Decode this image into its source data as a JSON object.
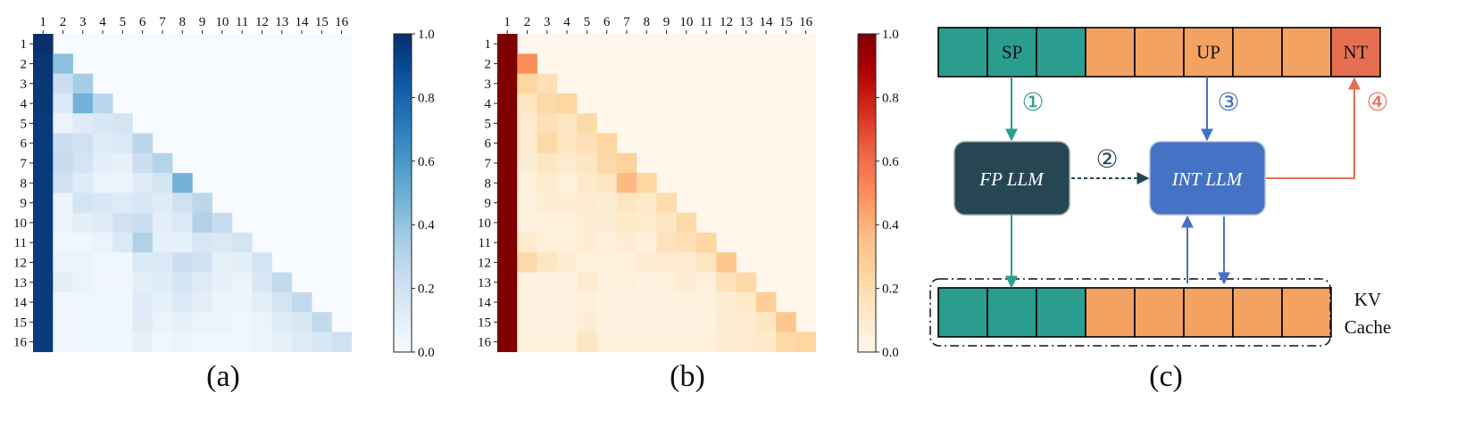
{
  "axis_labels": [
    "1",
    "2",
    "3",
    "4",
    "5",
    "6",
    "7",
    "8",
    "9",
    "10",
    "11",
    "12",
    "13",
    "14",
    "15",
    "16"
  ],
  "colorbar_ticks": [
    "0.0",
    "0.2",
    "0.4",
    "0.6",
    "0.8",
    "1.0"
  ],
  "panels": {
    "a": {
      "caption": "(a)",
      "colormap": "Blues"
    },
    "b": {
      "caption": "(b)",
      "colormap": "OrRd"
    },
    "c": {
      "caption": "(c)"
    }
  },
  "chart_data": [
    {
      "type": "heatmap",
      "panel": "a",
      "rows": [
        "1",
        "2",
        "3",
        "4",
        "5",
        "6",
        "7",
        "8",
        "9",
        "10",
        "11",
        "12",
        "13",
        "14",
        "15",
        "16"
      ],
      "cols": [
        "1",
        "2",
        "3",
        "4",
        "5",
        "6",
        "7",
        "8",
        "9",
        "10",
        "11",
        "12",
        "13",
        "14",
        "15",
        "16"
      ],
      "vmin": 0,
      "vmax": 1,
      "values": [
        [
          1.0
        ],
        [
          0.98,
          0.42
        ],
        [
          0.97,
          0.22,
          0.35
        ],
        [
          0.97,
          0.14,
          0.48,
          0.28
        ],
        [
          0.96,
          0.06,
          0.12,
          0.15,
          0.18
        ],
        [
          0.96,
          0.22,
          0.2,
          0.12,
          0.14,
          0.28
        ],
        [
          0.96,
          0.24,
          0.18,
          0.1,
          0.08,
          0.22,
          0.3
        ],
        [
          0.96,
          0.2,
          0.12,
          0.06,
          0.06,
          0.12,
          0.18,
          0.48
        ],
        [
          0.96,
          0.06,
          0.18,
          0.16,
          0.12,
          0.16,
          0.12,
          0.2,
          0.28
        ],
        [
          0.96,
          0.06,
          0.1,
          0.12,
          0.2,
          0.22,
          0.1,
          0.14,
          0.32,
          0.24
        ],
        [
          0.96,
          0.04,
          0.04,
          0.06,
          0.14,
          0.32,
          0.08,
          0.08,
          0.16,
          0.14,
          0.18
        ],
        [
          0.96,
          0.06,
          0.06,
          0.04,
          0.04,
          0.14,
          0.14,
          0.22,
          0.2,
          0.08,
          0.1,
          0.18
        ],
        [
          0.96,
          0.1,
          0.06,
          0.04,
          0.04,
          0.1,
          0.12,
          0.18,
          0.12,
          0.08,
          0.06,
          0.16,
          0.26
        ],
        [
          0.96,
          0.04,
          0.04,
          0.04,
          0.04,
          0.12,
          0.08,
          0.14,
          0.1,
          0.06,
          0.06,
          0.1,
          0.18,
          0.26
        ],
        [
          0.96,
          0.04,
          0.04,
          0.04,
          0.04,
          0.12,
          0.06,
          0.08,
          0.06,
          0.06,
          0.04,
          0.06,
          0.12,
          0.16,
          0.26
        ],
        [
          0.96,
          0.04,
          0.04,
          0.04,
          0.04,
          0.08,
          0.04,
          0.06,
          0.04,
          0.04,
          0.04,
          0.06,
          0.08,
          0.12,
          0.16,
          0.2
        ]
      ]
    },
    {
      "type": "heatmap",
      "panel": "b",
      "rows": [
        "1",
        "2",
        "3",
        "4",
        "5",
        "6",
        "7",
        "8",
        "9",
        "10",
        "11",
        "12",
        "13",
        "14",
        "15",
        "16"
      ],
      "cols": [
        "1",
        "2",
        "3",
        "4",
        "5",
        "6",
        "7",
        "8",
        "9",
        "10",
        "11",
        "12",
        "13",
        "14",
        "15",
        "16"
      ],
      "vmin": 0,
      "vmax": 1,
      "values": [
        [
          1.0
        ],
        [
          1.0,
          0.5
        ],
        [
          1.0,
          0.24,
          0.18
        ],
        [
          1.0,
          0.14,
          0.22,
          0.24
        ],
        [
          1.0,
          0.1,
          0.18,
          0.14,
          0.22
        ],
        [
          1.0,
          0.1,
          0.22,
          0.14,
          0.18,
          0.24
        ],
        [
          1.0,
          0.08,
          0.14,
          0.1,
          0.14,
          0.22,
          0.26
        ],
        [
          1.0,
          0.06,
          0.1,
          0.06,
          0.12,
          0.14,
          0.38,
          0.24
        ],
        [
          1.0,
          0.04,
          0.08,
          0.08,
          0.1,
          0.08,
          0.14,
          0.12,
          0.2
        ],
        [
          1.0,
          0.04,
          0.06,
          0.06,
          0.08,
          0.08,
          0.12,
          0.1,
          0.14,
          0.22
        ],
        [
          1.0,
          0.1,
          0.06,
          0.06,
          0.08,
          0.06,
          0.08,
          0.06,
          0.16,
          0.18,
          0.24
        ],
        [
          1.0,
          0.22,
          0.14,
          0.08,
          0.06,
          0.06,
          0.06,
          0.08,
          0.1,
          0.1,
          0.14,
          0.32
        ],
        [
          1.0,
          0.04,
          0.04,
          0.04,
          0.1,
          0.04,
          0.06,
          0.04,
          0.06,
          0.08,
          0.06,
          0.16,
          0.22
        ],
        [
          1.0,
          0.04,
          0.04,
          0.04,
          0.06,
          0.04,
          0.04,
          0.04,
          0.04,
          0.04,
          0.04,
          0.08,
          0.12,
          0.28
        ],
        [
          1.0,
          0.04,
          0.04,
          0.04,
          0.08,
          0.04,
          0.04,
          0.04,
          0.04,
          0.04,
          0.04,
          0.1,
          0.1,
          0.14,
          0.32
        ],
        [
          1.0,
          0.04,
          0.06,
          0.06,
          0.14,
          0.06,
          0.06,
          0.06,
          0.06,
          0.06,
          0.06,
          0.08,
          0.1,
          0.12,
          0.22,
          0.24
        ]
      ]
    }
  ],
  "diagram": {
    "top_tokens": [
      {
        "label": "",
        "kind": "sp"
      },
      {
        "label": "SP",
        "kind": "sp"
      },
      {
        "label": "",
        "kind": "sp"
      },
      {
        "label": "",
        "kind": "up"
      },
      {
        "label": "",
        "kind": "up"
      },
      {
        "label": "UP",
        "kind": "up"
      },
      {
        "label": "",
        "kind": "up"
      },
      {
        "label": "",
        "kind": "up"
      },
      {
        "label": "NT",
        "kind": "nt"
      }
    ],
    "cache_tokens": [
      "sp",
      "sp",
      "sp",
      "up",
      "up",
      "up",
      "up",
      "up"
    ],
    "fp_llm": "FP LLM",
    "int_llm": "INT LLM",
    "kv_line1": "KV",
    "kv_line2": "Cache",
    "steps": [
      "①",
      "②",
      "③",
      "④"
    ],
    "colors": {
      "sp": "#2a9d8f",
      "up": "#f4a261",
      "nt": "#e76f51",
      "fp_box": "#264653",
      "int_box": "#4472c4",
      "step1": "#2a9d8f",
      "step2": "#264653",
      "step3": "#4472c4",
      "step4": "#e76f51"
    }
  }
}
